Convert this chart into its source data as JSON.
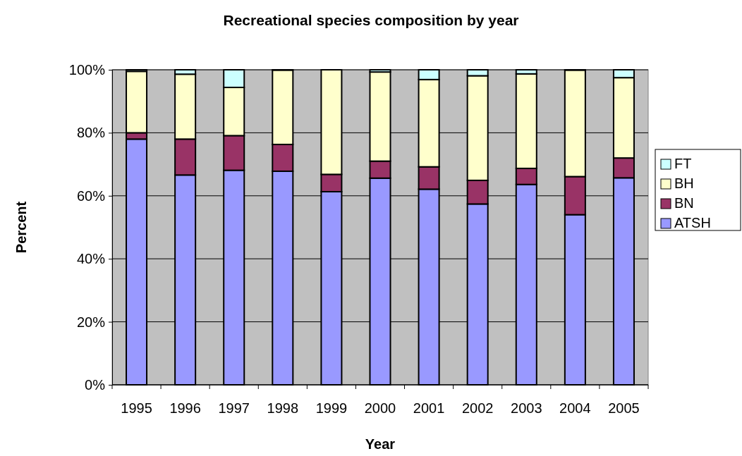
{
  "chart_data": {
    "type": "bar",
    "title": "Recreational species composition by year",
    "xlabel": "Year",
    "ylabel": "Percent",
    "categories": [
      "1995",
      "1996",
      "1997",
      "1998",
      "1999",
      "2000",
      "2001",
      "2002",
      "2003",
      "2004",
      "2005"
    ],
    "stacked": true,
    "ylim": [
      0,
      100
    ],
    "yticks": [
      {
        "value": 0,
        "label": "0%"
      },
      {
        "value": 20,
        "label": "20%"
      },
      {
        "value": 40,
        "label": "40%"
      },
      {
        "value": 60,
        "label": "60%"
      },
      {
        "value": 80,
        "label": "80%"
      },
      {
        "value": 100,
        "label": "100%"
      }
    ],
    "grid": "y",
    "legend": "right",
    "series": [
      {
        "name": "ATSH",
        "color": "#9999ff",
        "values": [
          78,
          66.6,
          68.1,
          67.8,
          61.3,
          65.6,
          62.1,
          57.4,
          63.6,
          54,
          65.7
        ]
      },
      {
        "name": "BN",
        "color": "#993366",
        "values": [
          2,
          11.4,
          11,
          8.5,
          5.5,
          5.4,
          7.1,
          7.5,
          5.1,
          12.1,
          6.3
        ]
      },
      {
        "name": "BH",
        "color": "#ffffcc",
        "values": [
          19.5,
          20.6,
          15.3,
          23.6,
          33.2,
          28.3,
          27.7,
          33.2,
          30,
          33.8,
          25.5
        ]
      },
      {
        "name": "FT",
        "color": "#ccffff",
        "values": [
          0.5,
          1.4,
          5.6,
          0.1,
          0,
          0.7,
          3.1,
          1.9,
          1.3,
          0.1,
          2.5
        ]
      }
    ]
  }
}
